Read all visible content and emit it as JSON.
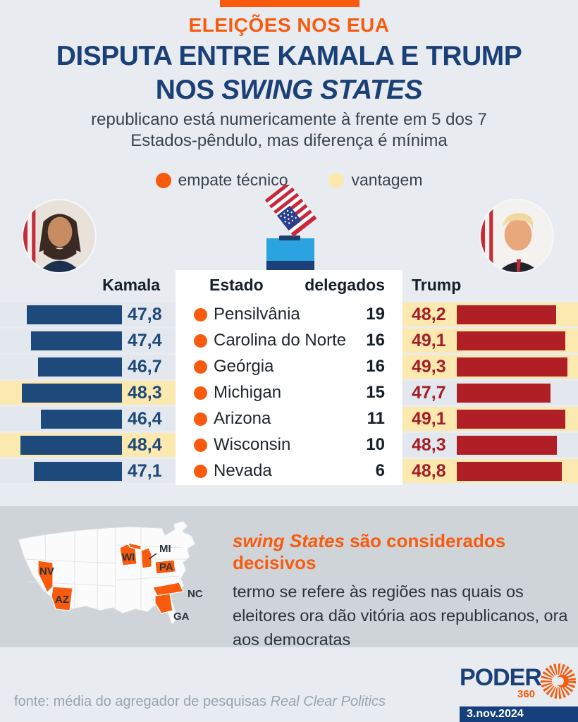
{
  "header": {
    "kicker": "ELEIÇÕES NOS EUA",
    "title_line1": "DISPUTA ENTRE KAMALA E TRUMP",
    "title_line2_prefix": "NOS ",
    "title_line2_italic": "SWING STATES",
    "subtitle_line1": "republicano está numericamente à frente em 5 dos 7",
    "subtitle_line2": "Estados-pêndulo, mas diferença é mínima"
  },
  "legend": {
    "tie_label": "empate técnico",
    "lead_label": "vantagem"
  },
  "table": {
    "kamala_header": "Kamala",
    "estado_header": "Estado",
    "delegados_header": "delegados",
    "trump_header": "Trump",
    "rows": [
      {
        "state": "Pensilvânia",
        "delegates": "19",
        "kamala": "47,8",
        "trump": "48,2",
        "leader": "trump"
      },
      {
        "state": "Carolina do Norte",
        "delegates": "16",
        "kamala": "47,4",
        "trump": "49,1",
        "leader": "trump"
      },
      {
        "state": "Geórgia",
        "delegates": "16",
        "kamala": "46,7",
        "trump": "49,3",
        "leader": "trump"
      },
      {
        "state": "Michigan",
        "delegates": "15",
        "kamala": "48,3",
        "trump": "47,7",
        "leader": "kamala"
      },
      {
        "state": "Arizona",
        "delegates": "11",
        "kamala": "46,4",
        "trump": "49,1",
        "leader": "trump"
      },
      {
        "state": "Wisconsin",
        "delegates": "10",
        "kamala": "48,4",
        "trump": "48,3",
        "leader": "kamala"
      },
      {
        "state": "Nevada",
        "delegates": "6",
        "kamala": "47,1",
        "trump": "48,8",
        "leader": "trump"
      }
    ]
  },
  "chart_data": {
    "type": "bar",
    "title": "DISPUTA ENTRE KAMALA E TRUMP NOS SWING STATES",
    "subtitle": "republicano está numericamente à frente em 5 dos 7 Estados-pêndulo, mas diferença é mínima",
    "categories": [
      "Pensilvânia",
      "Carolina do Norte",
      "Geórgia",
      "Michigan",
      "Arizona",
      "Wisconsin",
      "Nevada"
    ],
    "series": [
      {
        "name": "Kamala",
        "values": [
          47.8,
          47.4,
          46.7,
          48.3,
          46.4,
          48.4,
          47.1
        ]
      },
      {
        "name": "Trump",
        "values": [
          48.2,
          49.1,
          49.3,
          47.7,
          49.1,
          48.3,
          48.8
        ]
      }
    ],
    "delegates": [
      19,
      16,
      16,
      15,
      11,
      10,
      6
    ],
    "leader_per_state": [
      "trump",
      "trump",
      "trump",
      "kamala",
      "trump",
      "kamala",
      "trump"
    ],
    "legend": [
      "empate técnico",
      "vantagem"
    ],
    "legend_position": "top",
    "grid": false
  },
  "map": {
    "state_labels": [
      "NV",
      "AZ",
      "WI",
      "MI",
      "PA",
      "NC",
      "GA"
    ]
  },
  "info": {
    "highlight_italic": "swing States",
    "highlight_rest": " são considerados decisivos",
    "body": "termo se refere às regiões nas quais os eleitores ora dão vitória aos republicanos, ora aos democratas"
  },
  "footer": {
    "source_prefix": "fonte: média do agregador de pesquisas ",
    "source_italic": "Real Clear Politics",
    "logo_word": "PODER",
    "logo_360": "360",
    "date": "3.nov.2024"
  },
  "colors": {
    "orange": "#F85B0E",
    "navy": "#1B4077",
    "kamala_bar": "#1E4A7B",
    "trump_bar": "#B01F26",
    "trump_text": "#A51D27",
    "advantage_yellow": "#FCE9B0",
    "row_side_grey": "#E3E8EE",
    "panel_grey": "#CFD4D9",
    "page_bg": "#E8ECF1",
    "ballot_blue": "#2AA3E0",
    "date_navy": "#16407C"
  }
}
